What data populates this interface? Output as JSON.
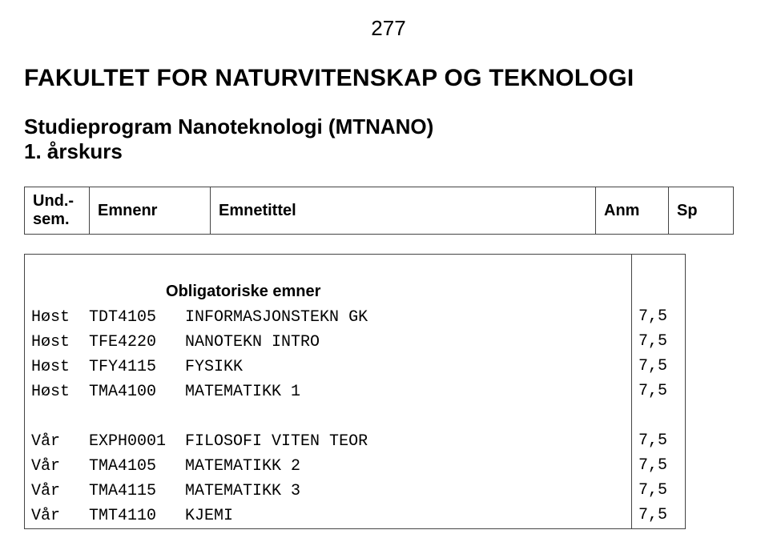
{
  "page_number": "277",
  "title": "FAKULTET FOR NATURVITENSKAP OG TEKNOLOGI",
  "subtitle": "Studieprogram Nanoteknologi (MTNANO)",
  "year_line": "1. årskurs",
  "head": {
    "und_sem": "Und.-\nsem.",
    "emnenr": "Emnenr",
    "emnetittel": "Emnetittel",
    "anm": "Anm",
    "sp": "Sp"
  },
  "section_label": "Obligatoriske emner",
  "rows1": [
    {
      "sem": "Høst",
      "code": "TDT4105",
      "name": "INFORMASJONSTEKN GK",
      "sp": "7,5"
    },
    {
      "sem": "Høst",
      "code": "TFE4220",
      "name": "NANOTEKN INTRO",
      "sp": "7,5"
    },
    {
      "sem": "Høst",
      "code": "TFY4115",
      "name": "FYSIKK",
      "sp": "7,5"
    },
    {
      "sem": "Høst",
      "code": "TMA4100",
      "name": "MATEMATIKK 1",
      "sp": "7,5"
    }
  ],
  "rows2": [
    {
      "sem": "Vår",
      "code": "EXPH0001",
      "name": "FILOSOFI VITEN TEOR",
      "sp": "7,5"
    },
    {
      "sem": "Vår",
      "code": "TMA4105",
      "name": "MATEMATIKK 2",
      "sp": "7,5"
    },
    {
      "sem": "Vår",
      "code": "TMA4115",
      "name": "MATEMATIKK 3",
      "sp": "7,5"
    },
    {
      "sem": "Vår",
      "code": "TMT4110",
      "name": "KJEMI",
      "sp": "7,5"
    }
  ]
}
